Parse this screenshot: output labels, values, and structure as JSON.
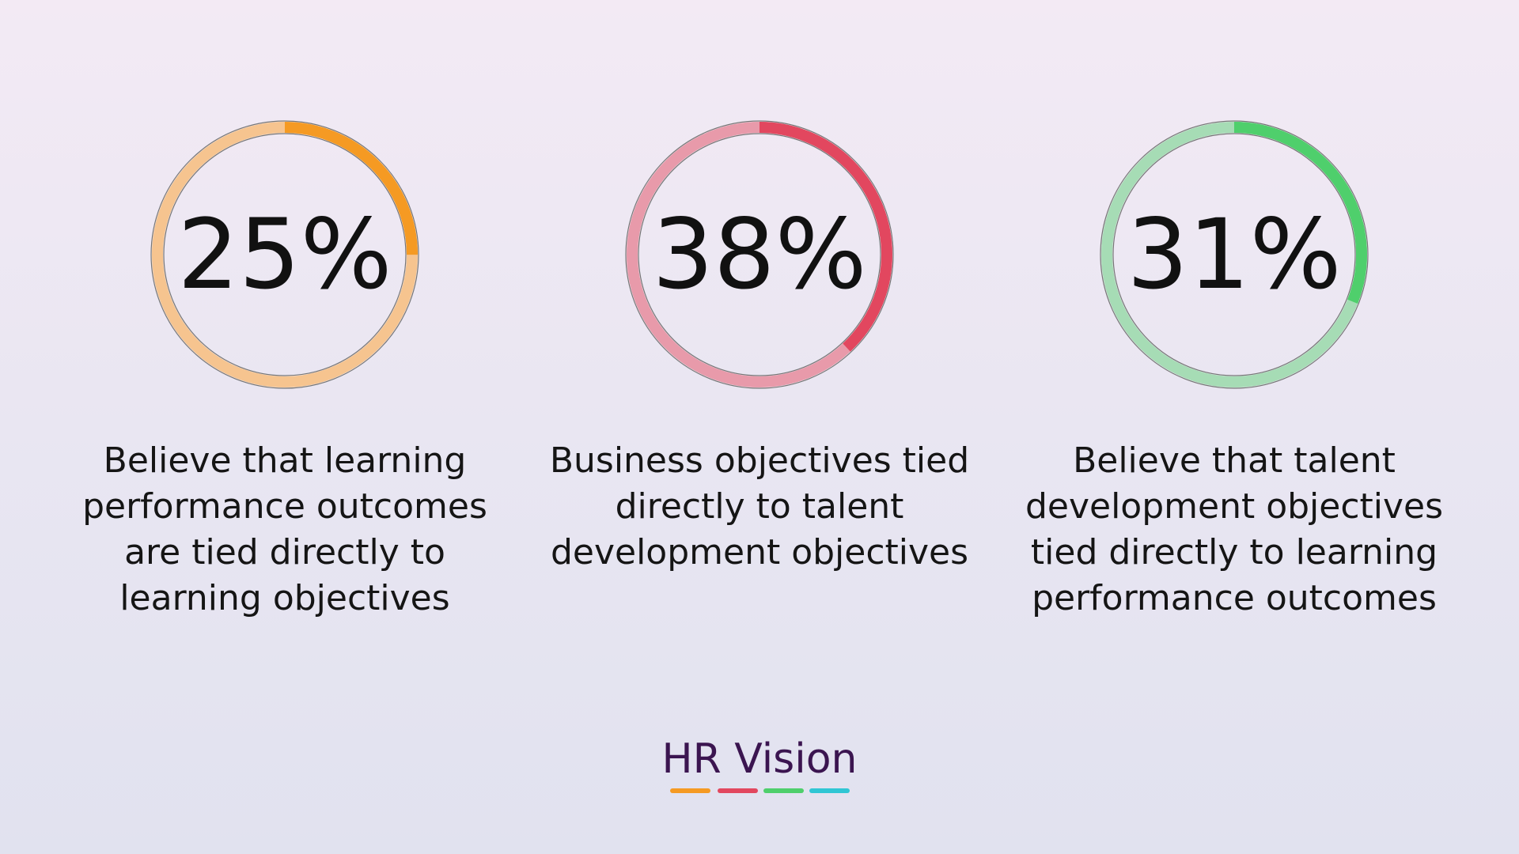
{
  "chart_data": [
    {
      "type": "donut",
      "title": "Believe that learning performance outcomes are tied directly to learning objectives",
      "values": [
        25
      ],
      "value_labels": [
        "25%"
      ],
      "color": "#f59a23",
      "track_color": "#f6c48f"
    },
    {
      "type": "donut",
      "title": "Business objectives tied directly to talent development objectives",
      "values": [
        38
      ],
      "value_labels": [
        "38%"
      ],
      "color": "#e2475f",
      "track_color": "#e89aaa"
    },
    {
      "type": "donut",
      "title": "Believe that talent development objectives tied directly to learning performance outcomes",
      "values": [
        31
      ],
      "value_labels": [
        "31%"
      ],
      "color": "#4fcf6c",
      "track_color": "#a6dcb5"
    }
  ],
  "footer": {
    "brand": "HR Vision"
  }
}
